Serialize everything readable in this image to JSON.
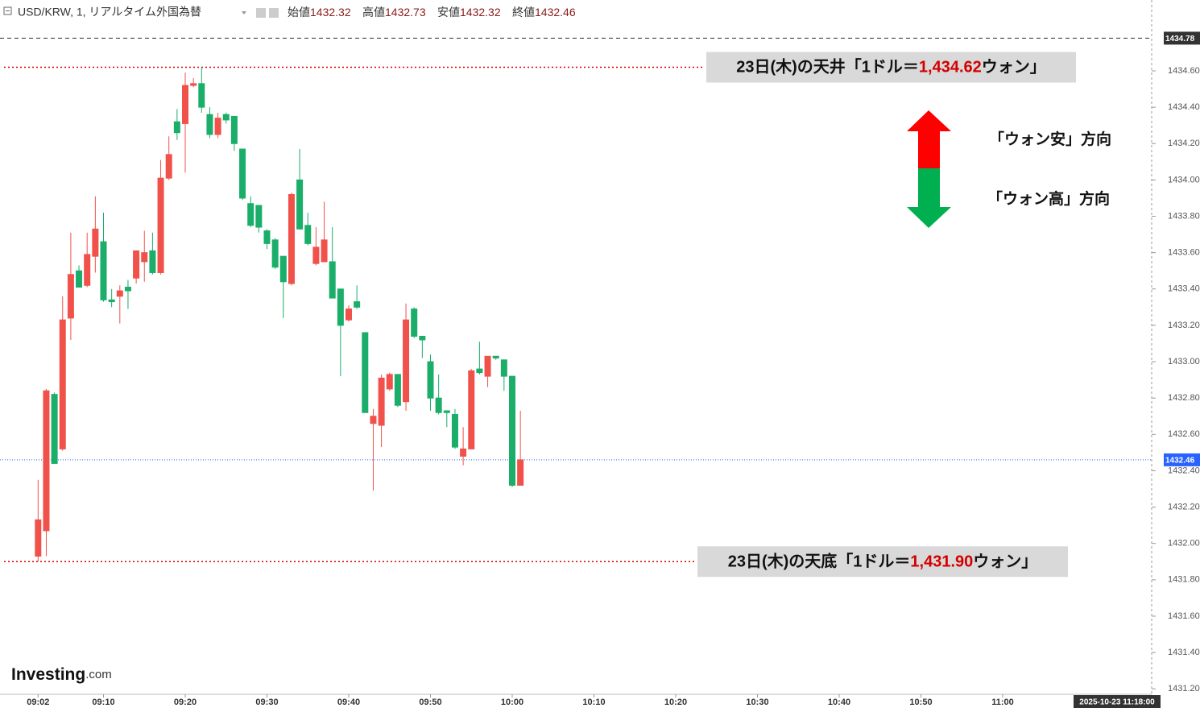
{
  "header": {
    "symbol": "USD/KRW, 1, リアルタイム外国為替",
    "ohlc": [
      {
        "label": "始値",
        "value": 1432.32
      },
      {
        "label": "高値",
        "value": 1432.73
      },
      {
        "label": "安値",
        "value": 1432.32
      },
      {
        "label": "終値",
        "value": 1432.46
      }
    ]
  },
  "logo": {
    "text": "Investing",
    "suffix": ".com"
  },
  "direction_labels": [
    "「ウォン安」方向",
    "「ウォン高」方向"
  ],
  "chart_data": {
    "type": "candlestick",
    "x": [
      "09:02",
      "09:03",
      "09:04",
      "09:05",
      "09:06",
      "09:07",
      "09:08",
      "09:09",
      "09:10",
      "09:11",
      "09:12",
      "09:13",
      "09:14",
      "09:15",
      "09:16",
      "09:17",
      "09:18",
      "09:19",
      "09:20",
      "09:21",
      "09:22",
      "09:23",
      "09:24",
      "09:25",
      "09:26",
      "09:27",
      "09:28",
      "09:29",
      "09:30",
      "09:31",
      "09:32",
      "09:33",
      "09:34",
      "09:35",
      "09:36",
      "09:37",
      "09:38",
      "09:39",
      "09:40",
      "09:41",
      "09:42",
      "09:43",
      "09:44",
      "09:45",
      "09:46",
      "09:47",
      "09:48",
      "09:49",
      "09:50",
      "09:51",
      "09:52",
      "09:53",
      "09:54",
      "09:55",
      "09:56",
      "09:57",
      "09:58",
      "09:59",
      "10:00",
      "10:01"
    ],
    "open": [
      1431.93,
      1432.07,
      1432.82,
      1432.52,
      1433.24,
      1433.5,
      1433.42,
      1433.58,
      1433.66,
      1433.34,
      1433.36,
      1433.41,
      1433.46,
      1433.55,
      1433.61,
      1433.49,
      1434.01,
      1434.32,
      1434.31,
      1434.52,
      1434.53,
      1434.36,
      1434.25,
      1434.36,
      1434.35,
      1434.17,
      1433.87,
      1433.86,
      1433.72,
      1433.67,
      1433.58,
      1433.43,
      1434.0,
      1433.75,
      1433.54,
      1433.55,
      1433.55,
      1433.4,
      1433.23,
      1433.33,
      1433.16,
      1432.66,
      1432.65,
      1432.85,
      1432.93,
      1432.78,
      1433.29,
      1433.14,
      1433.0,
      1432.8,
      1432.73,
      1432.71,
      1432.48,
      1432.52,
      1432.96,
      1432.92,
      1433.03,
      1433.01,
      1432.92,
      1432.32
    ],
    "high": [
      1432.35,
      1432.85,
      1432.83,
      1433.36,
      1433.71,
      1433.53,
      1433.71,
      1433.91,
      1433.82,
      1433.4,
      1433.42,
      1433.45,
      1433.61,
      1433.72,
      1433.71,
      1434.11,
      1434.24,
      1434.39,
      1434.59,
      1434.56,
      1434.62,
      1434.4,
      1434.37,
      1434.37,
      1434.35,
      1434.17,
      1433.91,
      1433.86,
      1433.73,
      1433.68,
      1433.58,
      1433.93,
      1434.17,
      1433.82,
      1433.74,
      1433.88,
      1433.74,
      1433.4,
      1433.31,
      1433.42,
      1433.16,
      1432.74,
      1432.93,
      1432.94,
      1432.93,
      1433.32,
      1433.3,
      1433.14,
      1433.04,
      1432.93,
      1432.73,
      1432.74,
      1432.64,
      1432.96,
      1433.11,
      1433.03,
      1433.03,
      1433.01,
      1432.92,
      1432.73
    ],
    "low": [
      1431.9,
      1431.93,
      1432.44,
      1432.51,
      1433.12,
      1433.41,
      1433.41,
      1433.49,
      1433.33,
      1433.3,
      1433.21,
      1433.29,
      1433.43,
      1433.44,
      1433.48,
      1433.48,
      1434.0,
      1434.22,
      1434.04,
      1434.51,
      1434.37,
      1434.23,
      1434.23,
      1434.31,
      1434.16,
      1433.89,
      1433.74,
      1433.71,
      1433.62,
      1433.51,
      1433.24,
      1433.42,
      1433.73,
      1433.64,
      1433.53,
      1433.55,
      1433.35,
      1432.92,
      1433.22,
      1433.29,
      1432.72,
      1432.29,
      1432.53,
      1432.84,
      1432.75,
      1432.73,
      1433.13,
      1433.02,
      1432.73,
      1432.71,
      1432.64,
      1432.52,
      1432.43,
      1432.52,
      1432.93,
      1432.86,
      1433.01,
      1432.84,
      1432.31,
      1432.32
    ],
    "close": [
      1432.13,
      1432.84,
      1432.44,
      1433.23,
      1433.48,
      1433.41,
      1433.59,
      1433.73,
      1433.34,
      1433.33,
      1433.39,
      1433.39,
      1433.61,
      1433.6,
      1433.49,
      1434.01,
      1434.14,
      1434.26,
      1434.52,
      1434.53,
      1434.4,
      1434.25,
      1434.34,
      1434.33,
      1434.2,
      1433.9,
      1433.75,
      1433.74,
      1433.65,
      1433.52,
      1433.44,
      1433.92,
      1433.73,
      1433.65,
      1433.63,
      1433.67,
      1433.35,
      1433.2,
      1433.29,
      1433.3,
      1432.72,
      1432.7,
      1432.91,
      1432.93,
      1432.76,
      1433.23,
      1433.14,
      1433.12,
      1432.8,
      1432.72,
      1432.72,
      1432.53,
      1432.52,
      1432.95,
      1432.94,
      1433.03,
      1433.02,
      1432.92,
      1432.32,
      1432.46
    ],
    "up_color": "#f0524b",
    "down_color": "#1aae6a",
    "ylim": [
      1431.17,
      1434.99
    ],
    "yticks": [
      {
        "value": 1431.2,
        "label": "1431.20"
      },
      {
        "value": 1431.4,
        "label": "1431.40"
      },
      {
        "value": 1431.6,
        "label": "1431.60"
      },
      {
        "value": 1431.8,
        "label": "1431.80"
      },
      {
        "value": 1432.0,
        "label": "1432.00"
      },
      {
        "value": 1432.2,
        "label": "1432.20"
      },
      {
        "value": 1432.4,
        "label": "1432.40"
      },
      {
        "value": 1432.6,
        "label": "1432.60"
      },
      {
        "value": 1432.8,
        "label": "1432.80"
      },
      {
        "value": 1433.0,
        "label": "1433.00"
      },
      {
        "value": 1433.2,
        "label": "1433.20"
      },
      {
        "value": 1433.4,
        "label": "1433.40"
      },
      {
        "value": 1433.6,
        "label": "1433.60"
      },
      {
        "value": 1433.8,
        "label": "1433.80"
      },
      {
        "value": 1434.0,
        "label": "1434.00"
      },
      {
        "value": 1434.2,
        "label": "1434.20"
      },
      {
        "value": 1434.4,
        "label": "1434.40"
      },
      {
        "value": 1434.6,
        "label": "1434.60"
      }
    ],
    "xticks": [
      "09:02",
      "09:10",
      "09:20",
      "09:30",
      "09:40",
      "09:50",
      "10:00",
      "10:10",
      "10:20",
      "10:30",
      "10:40",
      "10:50",
      "11:00"
    ],
    "price_lines": [
      {
        "value": 1434.78,
        "color": "#333333"
      },
      {
        "value": 1432.46,
        "color": "#2962ff"
      }
    ],
    "date_label": "2025-10-23 11:18:00",
    "annotations": [
      {
        "prefix": "23日(木)の天井「1ドル＝",
        "value": 1434.62,
        "value_label": "1,434.62",
        "suffix": "ウォン」",
        "color": "#d40000"
      },
      {
        "prefix": "23日(木)の天底「1ドル＝",
        "value": 1431.9,
        "value_label": "1,431.90",
        "suffix": "ウォン」",
        "color": "#d40000"
      }
    ]
  }
}
